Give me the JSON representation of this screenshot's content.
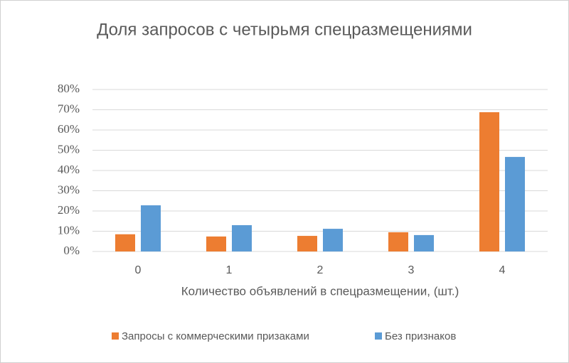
{
  "chart_data": {
    "type": "bar",
    "title": "Доля запросов с четырьмя спецразмещениями",
    "x_label": "Количество объявлений в спецразмещении, (шт.)",
    "categories": [
      "0",
      "1",
      "2",
      "3",
      "4"
    ],
    "series": [
      {
        "name": "Запросы с коммерческими призаками",
        "color": "#ed7d31",
        "values": [
          8.5,
          7.4,
          7.7,
          9.5,
          68.8
        ]
      },
      {
        "name": "Без признаков",
        "color": "#5b9bd5",
        "values": [
          22.8,
          13,
          11.2,
          8.1,
          46.7
        ]
      }
    ],
    "ylim": [
      0,
      80
    ],
    "yticks": [
      {
        "value": 0,
        "label": "0%"
      },
      {
        "value": 10,
        "label": "10%"
      },
      {
        "value": 20,
        "label": "20%"
      },
      {
        "value": 30,
        "label": "30%"
      },
      {
        "value": 40,
        "label": "40%"
      },
      {
        "value": 50,
        "label": "50%"
      },
      {
        "value": 60,
        "label": "60%"
      },
      {
        "value": 70,
        "label": "70%"
      },
      {
        "value": 80,
        "label": "80%"
      }
    ],
    "grid": true
  }
}
